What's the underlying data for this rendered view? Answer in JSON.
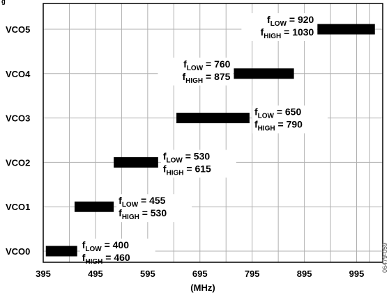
{
  "chart_data": {
    "type": "bar",
    "caption_fragment": "g",
    "xlabel": "(MHz)",
    "xlim": [
      395,
      1045
    ],
    "xticks": [
      "395",
      "495",
      "595",
      "695",
      "795",
      "895",
      "995"
    ],
    "categories": [
      "VCO0",
      "VCO1",
      "VCO2",
      "VCO3",
      "VCO4",
      "VCO5"
    ],
    "ranges": [
      {
        "name": "VCO0",
        "f_low": 400,
        "f_high": 460
      },
      {
        "name": "VCO1",
        "f_low": 455,
        "f_high": 530
      },
      {
        "name": "VCO2",
        "f_low": 530,
        "f_high": 615
      },
      {
        "name": "VCO3",
        "f_low": 650,
        "f_high": 790
      },
      {
        "name": "VCO4",
        "f_low": 760,
        "f_high": 875
      },
      {
        "name": "VCO5",
        "f_low": 920,
        "f_high": 1030
      }
    ],
    "range_label": {
      "low_prefix": "f",
      "low_sub": "LOW",
      "high_prefix": "f",
      "high_sub": "HIGH",
      "equals": " = "
    },
    "grid": true,
    "bar_color": "#000000",
    "grid_color": "#b0b0b0",
    "figure_id": "06479-059"
  }
}
